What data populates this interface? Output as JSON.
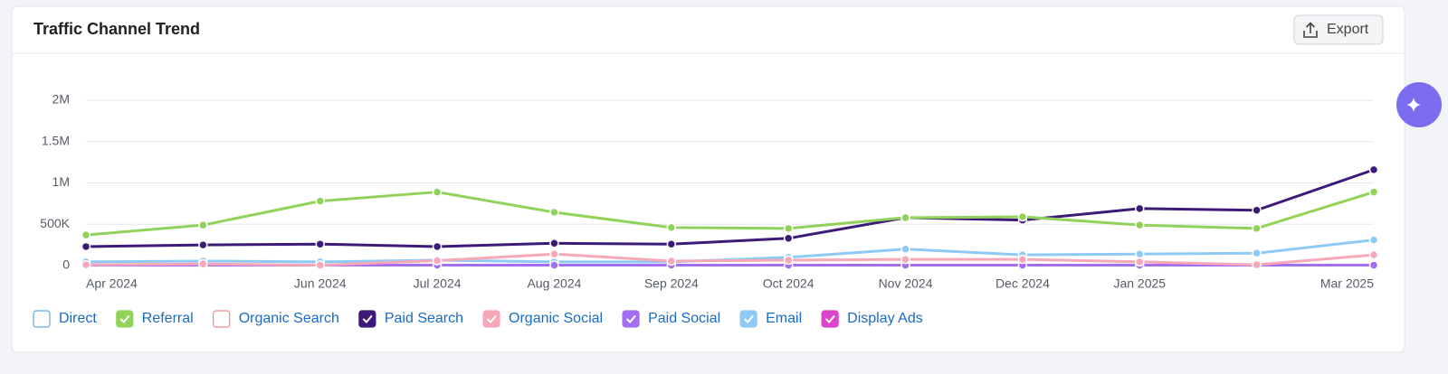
{
  "header": {
    "title": "Traffic Channel Trend",
    "export": "Export"
  },
  "chart_data": {
    "type": "line",
    "categories": [
      "Apr 2024",
      null,
      "Jun 2024",
      "Jul 2024",
      "Aug 2024",
      "Sep 2024",
      "Oct 2024",
      "Nov 2024",
      "Dec 2024",
      "Jan 2025",
      null,
      "Mar 2025"
    ],
    "ylim": [
      0,
      2000000
    ],
    "yticks": [
      0,
      {
        "value": 500000,
        "label": "500K"
      },
      {
        "value": 1000000,
        "label": "1M"
      },
      {
        "value": 1500000,
        "label": "1.5M"
      },
      {
        "value": 2000000,
        "label": "2M"
      }
    ],
    "grid": true,
    "legend": "bottom-left",
    "series": [
      {
        "name": "Direct",
        "color": "#5aa7e8",
        "visible": false
      },
      {
        "name": "Referral",
        "color": "#91d35a",
        "visible": true,
        "values": [
          370000,
          490000,
          780000,
          890000,
          645000,
          460000,
          450000,
          580000,
          590000,
          490000,
          450000,
          890000
        ]
      },
      {
        "name": "Organic Search",
        "color": "#f08a8a",
        "visible": false
      },
      {
        "name": "Paid Search",
        "color": "#3d1a78",
        "visible": true,
        "values": [
          230000,
          250000,
          260000,
          230000,
          270000,
          260000,
          330000,
          580000,
          550000,
          690000,
          670000,
          1160000
        ]
      },
      {
        "name": "Organic Social",
        "color": "#f7a8b8",
        "visible": true,
        "values": [
          10000,
          20000,
          5000,
          60000,
          140000,
          55000,
          65000,
          75000,
          75000,
          45000,
          10000,
          130000
        ]
      },
      {
        "name": "Paid Social",
        "color": "#a46ef0",
        "visible": true,
        "values": [
          5000,
          5000,
          5000,
          5000,
          5000,
          5000,
          5000,
          5000,
          5000,
          5000,
          5000,
          5000
        ]
      },
      {
        "name": "Email",
        "color": "#8ecaf5",
        "visible": true,
        "values": [
          45000,
          55000,
          45000,
          65000,
          45000,
          45000,
          100000,
          200000,
          130000,
          140000,
          150000,
          310000
        ]
      },
      {
        "name": "Display Ads",
        "color": "#dd44cc",
        "visible": true,
        "values": [
          5000,
          10000,
          5000,
          5000,
          5000,
          5000,
          5000,
          5000,
          5000,
          5000,
          5000,
          5000
        ]
      }
    ]
  }
}
